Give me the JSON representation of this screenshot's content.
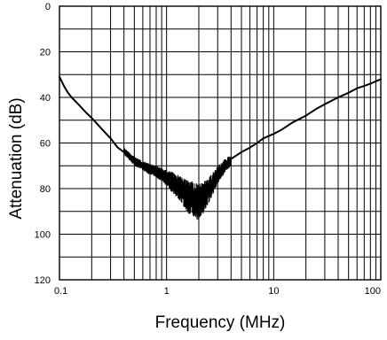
{
  "chart_data": {
    "type": "line",
    "title": "",
    "xlabel": "Frequency (MHz)",
    "ylabel": "Attenuation (dB)",
    "x_scale": "log",
    "y_inverted": true,
    "xlim": [
      0.1,
      100
    ],
    "ylim": [
      0,
      120
    ],
    "x_ticks": [
      {
        "value": 0.1,
        "label": "0.1"
      },
      {
        "value": 1,
        "label": "1"
      },
      {
        "value": 10,
        "label": "10"
      },
      {
        "value": 100,
        "label": "100"
      }
    ],
    "y_ticks": [
      {
        "value": 0,
        "label": "0"
      },
      {
        "value": 20,
        "label": "20"
      },
      {
        "value": 40,
        "label": "40"
      },
      {
        "value": 60,
        "label": "60"
      },
      {
        "value": 80,
        "label": "80"
      },
      {
        "value": 100,
        "label": "100"
      },
      {
        "value": 120,
        "label": "120"
      }
    ],
    "y_minor_step": 10,
    "grid": true,
    "line_color": "#000000",
    "series": [
      {
        "x": [
          0.1,
          0.105,
          0.11,
          0.12,
          0.13,
          0.15,
          0.18,
          0.2,
          0.25,
          0.3,
          0.35,
          0.4,
          0.5,
          0.6,
          0.7,
          0.8,
          0.9,
          1.0,
          1.2,
          1.4,
          1.6,
          1.8,
          2.0,
          2.2,
          2.5,
          2.8,
          3.0,
          3.5,
          4.0,
          5.0,
          6.0,
          7.0,
          8.0,
          10,
          12,
          15,
          20,
          25,
          30,
          40,
          50,
          60,
          70,
          80,
          100
        ],
        "y": [
          31,
          33,
          35,
          38,
          40,
          43,
          47,
          49,
          54,
          58,
          62,
          64,
          68,
          70,
          71,
          72,
          73,
          74,
          76,
          78,
          81,
          83,
          83,
          81,
          78,
          75,
          73,
          69,
          67,
          64,
          62,
          60,
          58,
          56,
          54,
          51,
          48,
          45,
          43,
          40,
          38,
          36,
          35,
          34,
          32
        ]
      },
      {
        "x": [
          0.4,
          0.5,
          0.6,
          0.7,
          0.8,
          0.9,
          1.0,
          1.2,
          1.4,
          1.6,
          1.8,
          2.0,
          2.2,
          2.5,
          2.8,
          3.0,
          3.5,
          4.0
        ],
        "y_low": [
          62,
          66,
          68,
          69,
          70,
          71,
          72,
          73,
          75,
          76,
          77,
          78,
          77,
          75,
          72,
          70,
          67,
          65
        ],
        "y_high": [
          65,
          70,
          72,
          74,
          75,
          77,
          79,
          83,
          87,
          91,
          93,
          94,
          91,
          86,
          81,
          78,
          73,
          70
        ]
      }
    ]
  }
}
